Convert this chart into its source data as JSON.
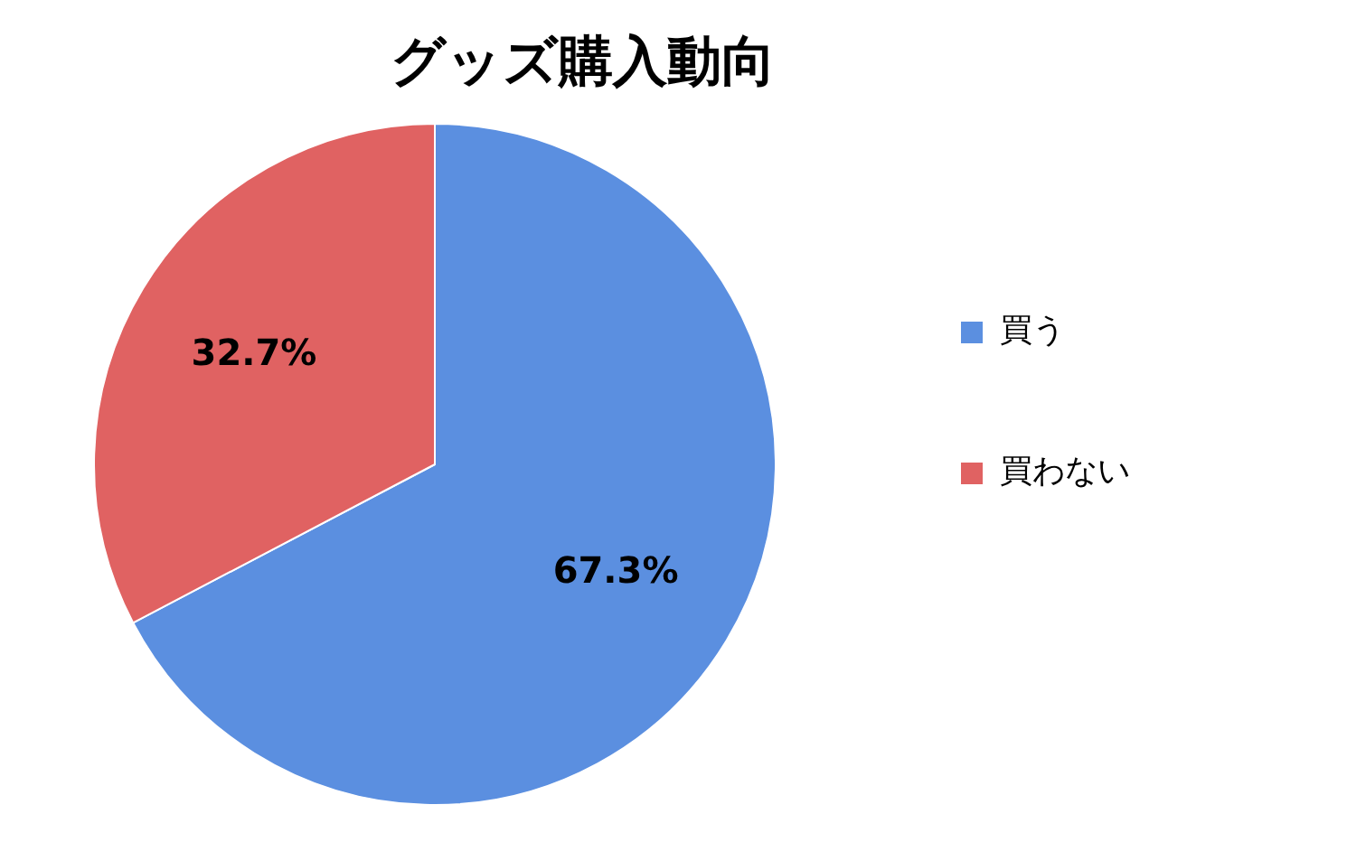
{
  "chart_data": {
    "type": "pie",
    "title": "グッズ購入動向",
    "categories": [
      "買う",
      "買わない"
    ],
    "values": [
      67.3,
      32.7
    ],
    "value_labels": [
      "67.3%",
      "32.7%"
    ],
    "colors": [
      "#5b8fe0",
      "#e06262"
    ],
    "legend": "right"
  }
}
